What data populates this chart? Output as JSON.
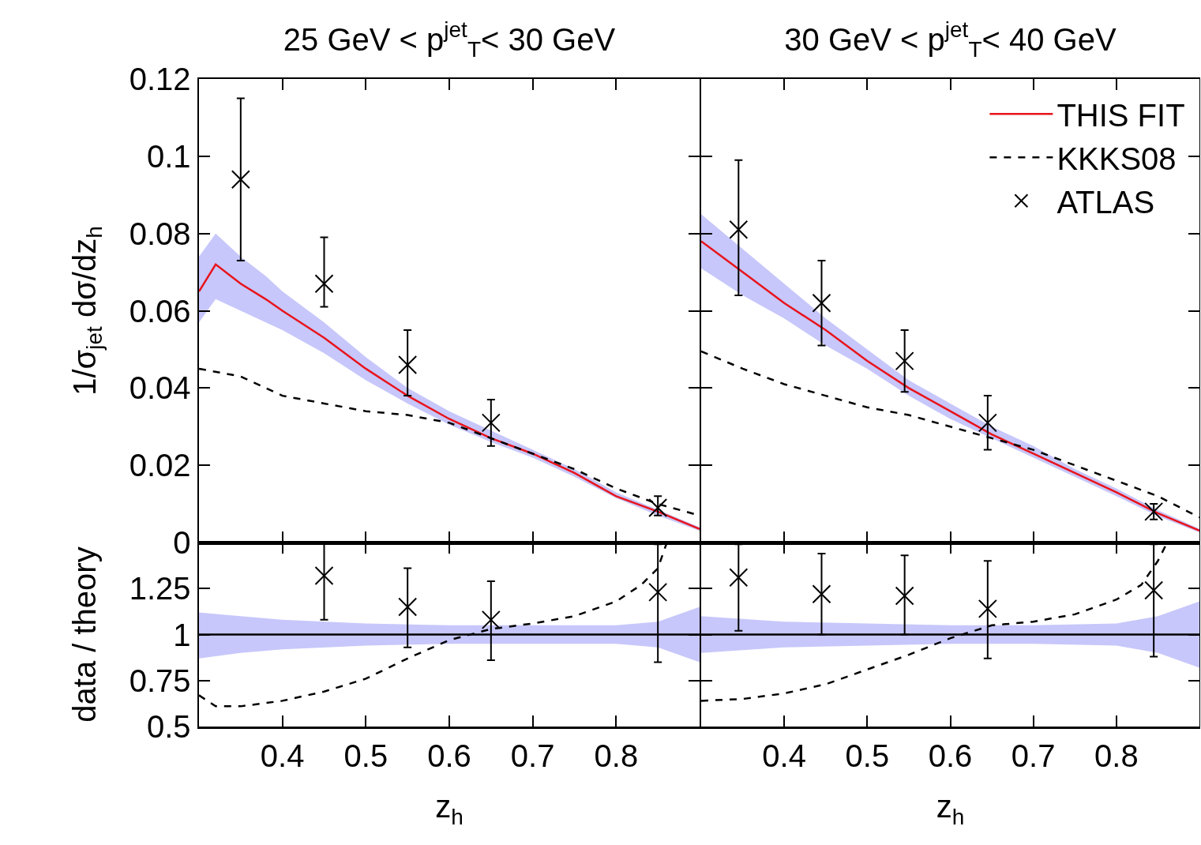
{
  "chart_data": [
    {
      "type": "line",
      "title": "25 GeV < p$^{jet}$$_{T}$< 30 GeV",
      "ylabel": "1/σ$_{jet}$ dσ/dz$_{h}$",
      "xlim": [
        0.3,
        0.9
      ],
      "ylim": [
        0,
        0.12
      ],
      "xticks": [
        0.4,
        0.5,
        0.6,
        0.7,
        0.8
      ],
      "yticks": [
        0,
        0.02,
        0.04,
        0.06,
        0.08,
        0.1,
        0.12
      ],
      "tick_labels": "y",
      "series": [
        {
          "type": "line",
          "color": "#e8141c",
          "line_style": "solid",
          "x": [
            0.3,
            0.32,
            0.35,
            0.38,
            0.4,
            0.45,
            0.5,
            0.55,
            0.6,
            0.65,
            0.7,
            0.75,
            0.8,
            0.85,
            0.9
          ],
          "values": [
            0.065,
            0.072,
            0.067,
            0.063,
            0.06,
            0.053,
            0.045,
            0.038,
            0.032,
            0.027,
            0.023,
            0.018,
            0.012,
            0.008,
            0.0035
          ],
          "lower": [
            0.057,
            0.063,
            0.06,
            0.057,
            0.055,
            0.049,
            0.042,
            0.036,
            0.0305,
            0.026,
            0.022,
            0.017,
            0.0115,
            0.007,
            0.003
          ],
          "upper": [
            0.074,
            0.08,
            0.074,
            0.069,
            0.065,
            0.057,
            0.048,
            0.04,
            0.034,
            0.029,
            0.024,
            0.019,
            0.013,
            0.0085,
            0.004
          ]
        },
        {
          "type": "line",
          "color": "#000000",
          "line_style": "dashed",
          "x": [
            0.3,
            0.35,
            0.4,
            0.45,
            0.5,
            0.55,
            0.6,
            0.65,
            0.7,
            0.75,
            0.8,
            0.85,
            0.9
          ],
          "values": [
            0.045,
            0.043,
            0.038,
            0.036,
            0.034,
            0.033,
            0.031,
            0.027,
            0.023,
            0.019,
            0.014,
            0.01,
            0.007
          ]
        },
        {
          "type": "scatter",
          "color": "#000000",
          "marker": "cross",
          "x": [
            0.35,
            0.45,
            0.55,
            0.65,
            0.85
          ],
          "values": [
            0.094,
            0.067,
            0.046,
            0.031,
            0.009
          ],
          "errors": [
            [
              0.073,
              0.115
            ],
            [
              0.061,
              0.079
            ],
            [
              0.038,
              0.055
            ],
            [
              0.025,
              0.037
            ],
            [
              0.007,
              0.012
            ]
          ]
        }
      ]
    },
    {
      "type": "line",
      "title": "30 GeV < p$^{jet}$$_{T}$< 40 GeV",
      "xlim": [
        0.3,
        0.9
      ],
      "ylim": [
        0,
        0.12
      ],
      "xticks": [
        0.4,
        0.5,
        0.6,
        0.7,
        0.8
      ],
      "yticks": [
        0,
        0.02,
        0.04,
        0.06,
        0.08,
        0.1,
        0.12
      ],
      "tick_labels": false,
      "legend": "top right",
      "series": [
        {
          "type": "line",
          "name": "THIS FIT",
          "color": "#e8141c",
          "line_style": "solid",
          "x": [
            0.3,
            0.35,
            0.4,
            0.45,
            0.5,
            0.55,
            0.6,
            0.65,
            0.7,
            0.75,
            0.8,
            0.85,
            0.9
          ],
          "values": [
            0.078,
            0.07,
            0.062,
            0.055,
            0.047,
            0.04,
            0.034,
            0.028,
            0.023,
            0.018,
            0.013,
            0.0076,
            0.0031
          ],
          "lower": [
            0.071,
            0.064,
            0.058,
            0.051,
            0.045,
            0.038,
            0.032,
            0.027,
            0.022,
            0.017,
            0.012,
            0.0068,
            0.0026
          ],
          "upper": [
            0.085,
            0.076,
            0.067,
            0.058,
            0.05,
            0.042,
            0.036,
            0.03,
            0.025,
            0.019,
            0.014,
            0.0084,
            0.0036
          ]
        },
        {
          "type": "line",
          "name": "KKKS08",
          "color": "#000000",
          "line_style": "dashed",
          "x": [
            0.3,
            0.35,
            0.4,
            0.45,
            0.5,
            0.55,
            0.6,
            0.65,
            0.7,
            0.75,
            0.8,
            0.85,
            0.9
          ],
          "values": [
            0.0495,
            0.045,
            0.041,
            0.038,
            0.035,
            0.033,
            0.03,
            0.027,
            0.024,
            0.02,
            0.016,
            0.012,
            0.0065
          ]
        },
        {
          "type": "scatter",
          "name": "ATLAS",
          "color": "#000000",
          "marker": "cross",
          "x": [
            0.345,
            0.445,
            0.545,
            0.645,
            0.845
          ],
          "values": [
            0.081,
            0.062,
            0.047,
            0.031,
            0.008
          ],
          "errors": [
            [
              0.064,
              0.099
            ],
            [
              0.051,
              0.073
            ],
            [
              0.039,
              0.055
            ],
            [
              0.024,
              0.038
            ],
            [
              0.006,
              0.01
            ]
          ]
        }
      ]
    },
    {
      "type": "line",
      "xlabel": "z$_{h}$",
      "ylabel": "data / theory",
      "xlim": [
        0.3,
        0.9
      ],
      "ylim": [
        0.5,
        1.5
      ],
      "xticks": [
        0.4,
        0.5,
        0.6,
        0.7,
        0.8
      ],
      "yticks": [
        0.5,
        0.75,
        1,
        1.25
      ],
      "series": [
        {
          "type": "line",
          "color": "#000000",
          "line_style": "solid",
          "x": [
            0.3,
            0.35,
            0.4,
            0.5,
            0.6,
            0.7,
            0.8,
            0.85,
            0.9
          ],
          "values": [
            1,
            1,
            1,
            1,
            1,
            1,
            1,
            1,
            1
          ],
          "lower": [
            0.87,
            0.9,
            0.92,
            0.94,
            0.95,
            0.95,
            0.95,
            0.93,
            0.85
          ],
          "upper": [
            1.12,
            1.1,
            1.08,
            1.06,
            1.05,
            1.05,
            1.05,
            1.07,
            1.15
          ]
        },
        {
          "type": "line",
          "color": "#000000",
          "line_style": "dashed",
          "x": [
            0.3,
            0.32,
            0.35,
            0.4,
            0.45,
            0.5,
            0.55,
            0.6,
            0.65,
            0.7,
            0.75,
            0.8,
            0.83,
            0.85,
            0.86
          ],
          "values": [
            0.67,
            0.61,
            0.61,
            0.64,
            0.69,
            0.76,
            0.87,
            0.97,
            1.03,
            1.06,
            1.1,
            1.18,
            1.27,
            1.36,
            1.49
          ]
        },
        {
          "type": "scatter",
          "color": "#000000",
          "marker": "cross",
          "x": [
            0.45,
            0.55,
            0.65,
            0.85
          ],
          "values": [
            1.32,
            1.15,
            1.08,
            1.23
          ],
          "errors": [
            [
              1.08,
              1.5
            ],
            [
              0.93,
              1.36
            ],
            [
              0.86,
              1.29
            ],
            [
              0.85,
              1.49
            ]
          ]
        }
      ]
    },
    {
      "type": "line",
      "xlabel": "z$_{h}$",
      "xlim": [
        0.3,
        0.9
      ],
      "ylim": [
        0.5,
        1.5
      ],
      "xticks": [
        0.4,
        0.5,
        0.6,
        0.7,
        0.8
      ],
      "yticks": [
        0.5,
        0.75,
        1,
        1.25
      ],
      "tick_labels": "x",
      "series": [
        {
          "type": "line",
          "color": "#000000",
          "line_style": "solid",
          "x": [
            0.3,
            0.4,
            0.5,
            0.6,
            0.7,
            0.8,
            0.85,
            0.9
          ],
          "values": [
            1,
            1,
            1,
            1,
            1,
            1,
            1,
            1
          ],
          "lower": [
            0.9,
            0.93,
            0.94,
            0.95,
            0.95,
            0.94,
            0.9,
            0.82
          ],
          "upper": [
            1.1,
            1.07,
            1.06,
            1.05,
            1.05,
            1.06,
            1.1,
            1.18
          ]
        },
        {
          "type": "line",
          "color": "#000000",
          "line_style": "dashed",
          "x": [
            0.3,
            0.35,
            0.4,
            0.45,
            0.5,
            0.55,
            0.6,
            0.65,
            0.7,
            0.75,
            0.8,
            0.83,
            0.85,
            0.86
          ],
          "values": [
            0.64,
            0.65,
            0.68,
            0.73,
            0.81,
            0.89,
            0.98,
            1.05,
            1.07,
            1.11,
            1.19,
            1.27,
            1.4,
            1.49
          ]
        },
        {
          "type": "scatter",
          "color": "#000000",
          "marker": "cross",
          "x": [
            0.345,
            0.445,
            0.545,
            0.645,
            0.845
          ],
          "values": [
            1.31,
            1.22,
            1.21,
            1.14,
            1.24
          ],
          "errors": [
            [
              1.02,
              1.49
            ],
            [
              1.0,
              1.44
            ],
            [
              1.0,
              1.43
            ],
            [
              0.87,
              1.4
            ],
            [
              0.88,
              1.49
            ]
          ]
        }
      ]
    }
  ]
}
